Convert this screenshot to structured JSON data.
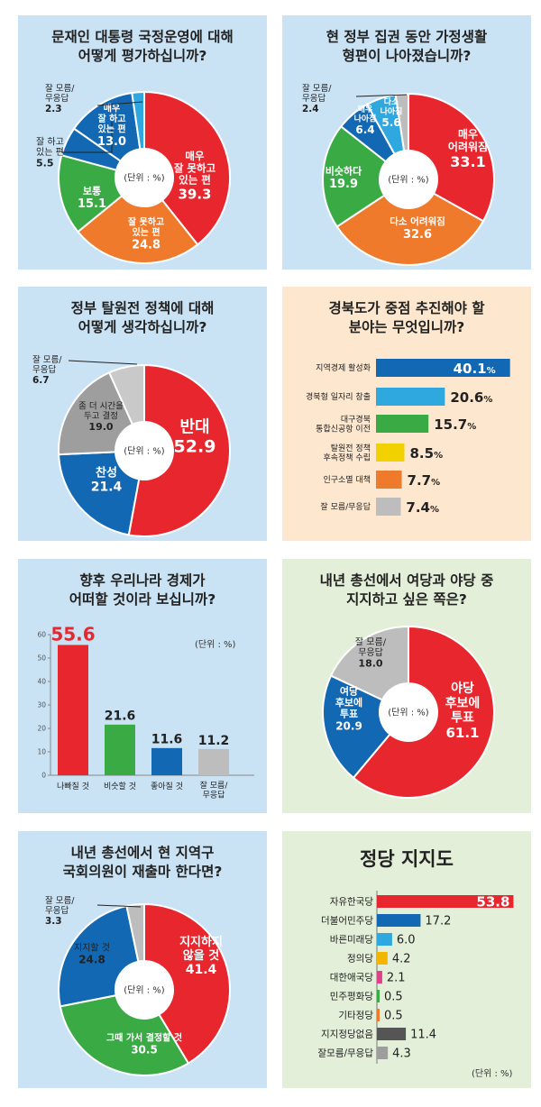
{
  "panels": [
    {
      "id": "moon-approval",
      "title_lines": [
        "문재인 대통령 국정운영에 대해",
        "어떻게 평가하십니까?"
      ],
      "unit_label": "(단위 : %)",
      "chart_data": {
        "type": "pie",
        "style": "donut",
        "slices": [
          {
            "label_lines": [
              "매우",
              "잘 못하고",
              "있는 편"
            ],
            "value": 39.3,
            "color": "#e8262e"
          },
          {
            "label_lines": [
              "잘 못하고",
              "있는 편"
            ],
            "value": 24.8,
            "color": "#f07a2b"
          },
          {
            "label_lines": [
              "보통"
            ],
            "value": 15.1,
            "color": "#3aaa45"
          },
          {
            "label_lines": [
              "잘 하고",
              "있는 편"
            ],
            "value": 5.5,
            "color": "#1268b3"
          },
          {
            "label_lines": [
              "매우",
              "잘 하고",
              "있는 편"
            ],
            "value": 13.0,
            "color": "#1268b3"
          },
          {
            "label_lines": [
              "잘 모름/",
              "무응답"
            ],
            "value": 2.3,
            "color": "#2ea8df"
          }
        ]
      }
    },
    {
      "id": "household",
      "title_lines": [
        "현 정부 집권 동안 가정생활",
        "형편이 나아졌습니까?"
      ],
      "unit_label": "(단위 : %)",
      "chart_data": {
        "type": "pie",
        "style": "donut",
        "slices": [
          {
            "label_lines": [
              "매우",
              "어려워짐"
            ],
            "value": 33.1,
            "color": "#e8262e"
          },
          {
            "label_lines": [
              "다소 어려워짐"
            ],
            "value": 32.6,
            "color": "#f07a2b"
          },
          {
            "label_lines": [
              "비슷하다"
            ],
            "value": 19.9,
            "color": "#3aaa45"
          },
          {
            "label_lines": [
              "매우",
              "나아짐"
            ],
            "value": 6.4,
            "color": "#1268b3"
          },
          {
            "label_lines": [
              "다소",
              "나아짐"
            ],
            "value": 5.6,
            "color": "#2ea8df"
          },
          {
            "label_lines": [
              "잘 모름/",
              "무응답"
            ],
            "value": 2.4,
            "color": "#bdbdbd"
          }
        ]
      }
    },
    {
      "id": "nuclear-policy",
      "title_lines": [
        "정부 탈원전 정책에 대해",
        "어떻게 생각하십니까?"
      ],
      "unit_label": "(단위 : %)",
      "chart_data": {
        "type": "pie",
        "style": "donut",
        "slices": [
          {
            "label_lines": [
              "반대"
            ],
            "value": 52.9,
            "color": "#e8262e"
          },
          {
            "label_lines": [
              "찬성"
            ],
            "value": 21.4,
            "color": "#1268b3"
          },
          {
            "label_lines": [
              "좀 더 시간을",
              "두고 결정"
            ],
            "value": 19.0,
            "color": "#9e9e9e"
          },
          {
            "label_lines": [
              "잘 모름/",
              "무응답"
            ],
            "value": 6.7,
            "color": "#c9c9c9"
          }
        ]
      }
    },
    {
      "id": "gyeongbuk-priority",
      "title_lines": [
        "경북도가 중점 추진해야 할",
        "분야는 무엇입니까?"
      ],
      "chart_data": {
        "type": "bar",
        "orientation": "horizontal",
        "categories": [
          [
            "지역경제 활성화"
          ],
          [
            "경북형 일자리 창출"
          ],
          [
            "대구경북",
            "통합신공항 이전"
          ],
          [
            "탈원전 정책",
            "후속정책 수립"
          ],
          [
            "인구소멸 대책"
          ],
          [
            "잘 모름/무응답"
          ]
        ],
        "values": [
          40.1,
          20.6,
          15.7,
          8.5,
          7.7,
          7.4
        ],
        "value_labels": [
          "40.1",
          "20.6",
          "15.7",
          "8.5",
          "7.7",
          "7.4"
        ],
        "percent_sign": "%",
        "colors": [
          "#1268b3",
          "#2ea8df",
          "#3aaa45",
          "#f2d100",
          "#f07a2b",
          "#bdbdbd"
        ]
      }
    },
    {
      "id": "economy-outlook",
      "title_lines": [
        "향후 우리나라 경제가",
        "어떠할 것이라 보십니까?"
      ],
      "unit_label": "(단위 : %)",
      "chart_data": {
        "type": "bar",
        "orientation": "vertical",
        "categories": [
          [
            "나빠질 것"
          ],
          [
            "비슷할 것"
          ],
          [
            "좋아질 것"
          ],
          [
            "잘 모름/",
            "무응답"
          ]
        ],
        "values": [
          55.6,
          21.6,
          11.6,
          11.2
        ],
        "value_labels": [
          "55.6",
          "21.6",
          "11.6",
          "11.2"
        ],
        "colors": [
          "#e8262e",
          "#3aaa45",
          "#1268b3",
          "#bdbdbd"
        ],
        "ylim": [
          0,
          60
        ],
        "yticks": [
          "0",
          "10",
          "20",
          "30",
          "40",
          "50",
          "60"
        ]
      }
    },
    {
      "id": "ruling-vs-opposition",
      "title_lines": [
        "내년 총선에서 여당과 야당 중",
        "지지하고 싶은 쪽은?"
      ],
      "unit_label": "(단위 : %)",
      "chart_data": {
        "type": "pie",
        "style": "donut",
        "slices": [
          {
            "label_lines": [
              "야당",
              "후보에",
              "투표"
            ],
            "value": 61.1,
            "color": "#e8262e"
          },
          {
            "label_lines": [
              "여당",
              "후보에",
              "투표"
            ],
            "value": 20.9,
            "color": "#1268b3"
          },
          {
            "label_lines": [
              "잘 모름/",
              "무응답"
            ],
            "value": 18.0,
            "color": "#bdbdbd"
          }
        ]
      }
    },
    {
      "id": "incumbent-rerun",
      "title_lines": [
        "내년 총선에서 현 지역구",
        "국회의원이 재출마 한다면?"
      ],
      "unit_label": "(단위 : %)",
      "chart_data": {
        "type": "pie",
        "style": "donut",
        "slices": [
          {
            "label_lines": [
              "지지하지",
              "않을 것"
            ],
            "value": 41.4,
            "color": "#e8262e"
          },
          {
            "label_lines": [
              "그때 가서 결정할 것"
            ],
            "value": 30.5,
            "color": "#3aaa45"
          },
          {
            "label_lines": [
              "지지할 것"
            ],
            "value": 24.8,
            "color": "#1268b3"
          },
          {
            "label_lines": [
              "잘 모름/",
              "무응답"
            ],
            "value": 3.3,
            "color": "#bdbdbd"
          }
        ]
      }
    },
    {
      "id": "party-support",
      "title_lines": [
        "정당 지지도"
      ],
      "unit_label": "(단위 : %)",
      "chart_data": {
        "type": "bar",
        "orientation": "horizontal",
        "categories": [
          [
            "자유한국당"
          ],
          [
            "더불어민주당"
          ],
          [
            "바른미래당"
          ],
          [
            "정의당"
          ],
          [
            "대한애국당"
          ],
          [
            "민주평화당"
          ],
          [
            "기타정당"
          ],
          [
            "지지정당없음"
          ],
          [
            "잘모름/무응답"
          ]
        ],
        "values": [
          53.8,
          17.2,
          6.0,
          4.2,
          2.1,
          0.5,
          0.5,
          11.4,
          4.3
        ],
        "value_labels": [
          "53.8",
          "17.2",
          "6.0",
          "4.2",
          "2.1",
          "0.5",
          "0.5",
          "11.4",
          "4.3"
        ],
        "colors": [
          "#e8262e",
          "#1268b3",
          "#2ea8df",
          "#f2b600",
          "#e0408a",
          "#3aaa45",
          "#f07a2b",
          "#555555",
          "#9e9e9e"
        ]
      }
    }
  ]
}
